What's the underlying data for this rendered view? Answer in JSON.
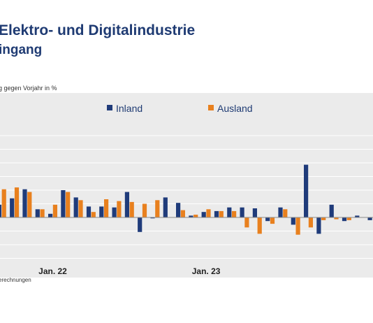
{
  "header": {
    "title": "Elektro- und Digitalindustrie",
    "subtitle": "ingang"
  },
  "footer": {
    "source": "erechnungen"
  },
  "colors": {
    "inland": "#1f3b7a",
    "ausland": "#e8801e",
    "grid": "#ffffff",
    "plot_bg": "#ebebeb",
    "title": "#1f3b73"
  },
  "chart_data": {
    "type": "bar",
    "title": "Elektro- und Digitalindustrie",
    "ylabel": "g gegen Vorjahr in %",
    "xlabel": "",
    "grid": true,
    "legend_position": "top-center",
    "ylim": [
      -45,
      90
    ],
    "x_tick_labels": [
      {
        "label": "Jan. 22",
        "index": 5
      },
      {
        "label": "Jan. 23",
        "index": 17
      }
    ],
    "series": [
      {
        "name": "Inland",
        "values": [
          14,
          14,
          21,
          31,
          9,
          4,
          30,
          22,
          12,
          12,
          11,
          28,
          -16,
          -1,
          22,
          16,
          2,
          6,
          7,
          11,
          11,
          10,
          -4,
          11,
          -8,
          58,
          -18,
          14,
          -4,
          2,
          -3
        ]
      },
      {
        "name": "Ausland",
        "values": [
          39,
          31,
          33,
          28,
          9,
          14,
          28,
          19,
          6,
          20,
          18,
          17,
          15,
          19,
          null,
          8,
          3,
          9,
          7,
          7,
          -11,
          -18,
          -7,
          9,
          -19,
          -11,
          -3,
          -2,
          -3,
          null,
          null
        ]
      }
    ]
  }
}
